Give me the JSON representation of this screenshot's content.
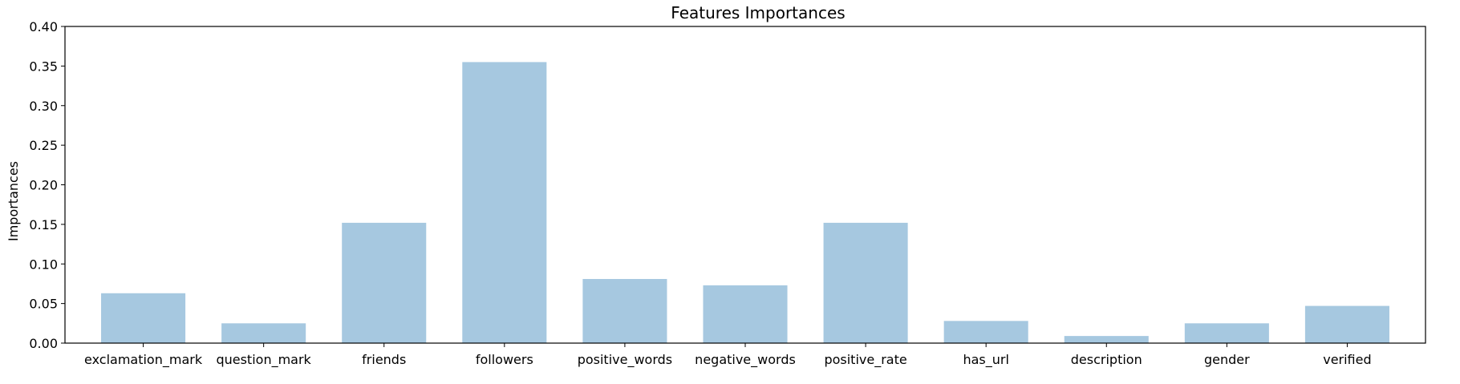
{
  "chart_data": {
    "type": "bar",
    "title": "Features Importances",
    "xlabel": "",
    "ylabel": "Importances",
    "categories": [
      "exclamation_mark",
      "question_mark",
      "friends",
      "followers",
      "positive_words",
      "negative_words",
      "positive_rate",
      "has_url",
      "description",
      "gender",
      "verified"
    ],
    "values": [
      0.063,
      0.025,
      0.152,
      0.355,
      0.081,
      0.073,
      0.152,
      0.028,
      0.009,
      0.025,
      0.047
    ],
    "ylim": [
      0,
      0.4
    ],
    "yticks": [
      "0.00",
      "0.05",
      "0.10",
      "0.15",
      "0.20",
      "0.25",
      "0.30",
      "0.35",
      "0.40"
    ],
    "bar_color": "#a6c8e0",
    "grid": false,
    "legend": "none"
  }
}
